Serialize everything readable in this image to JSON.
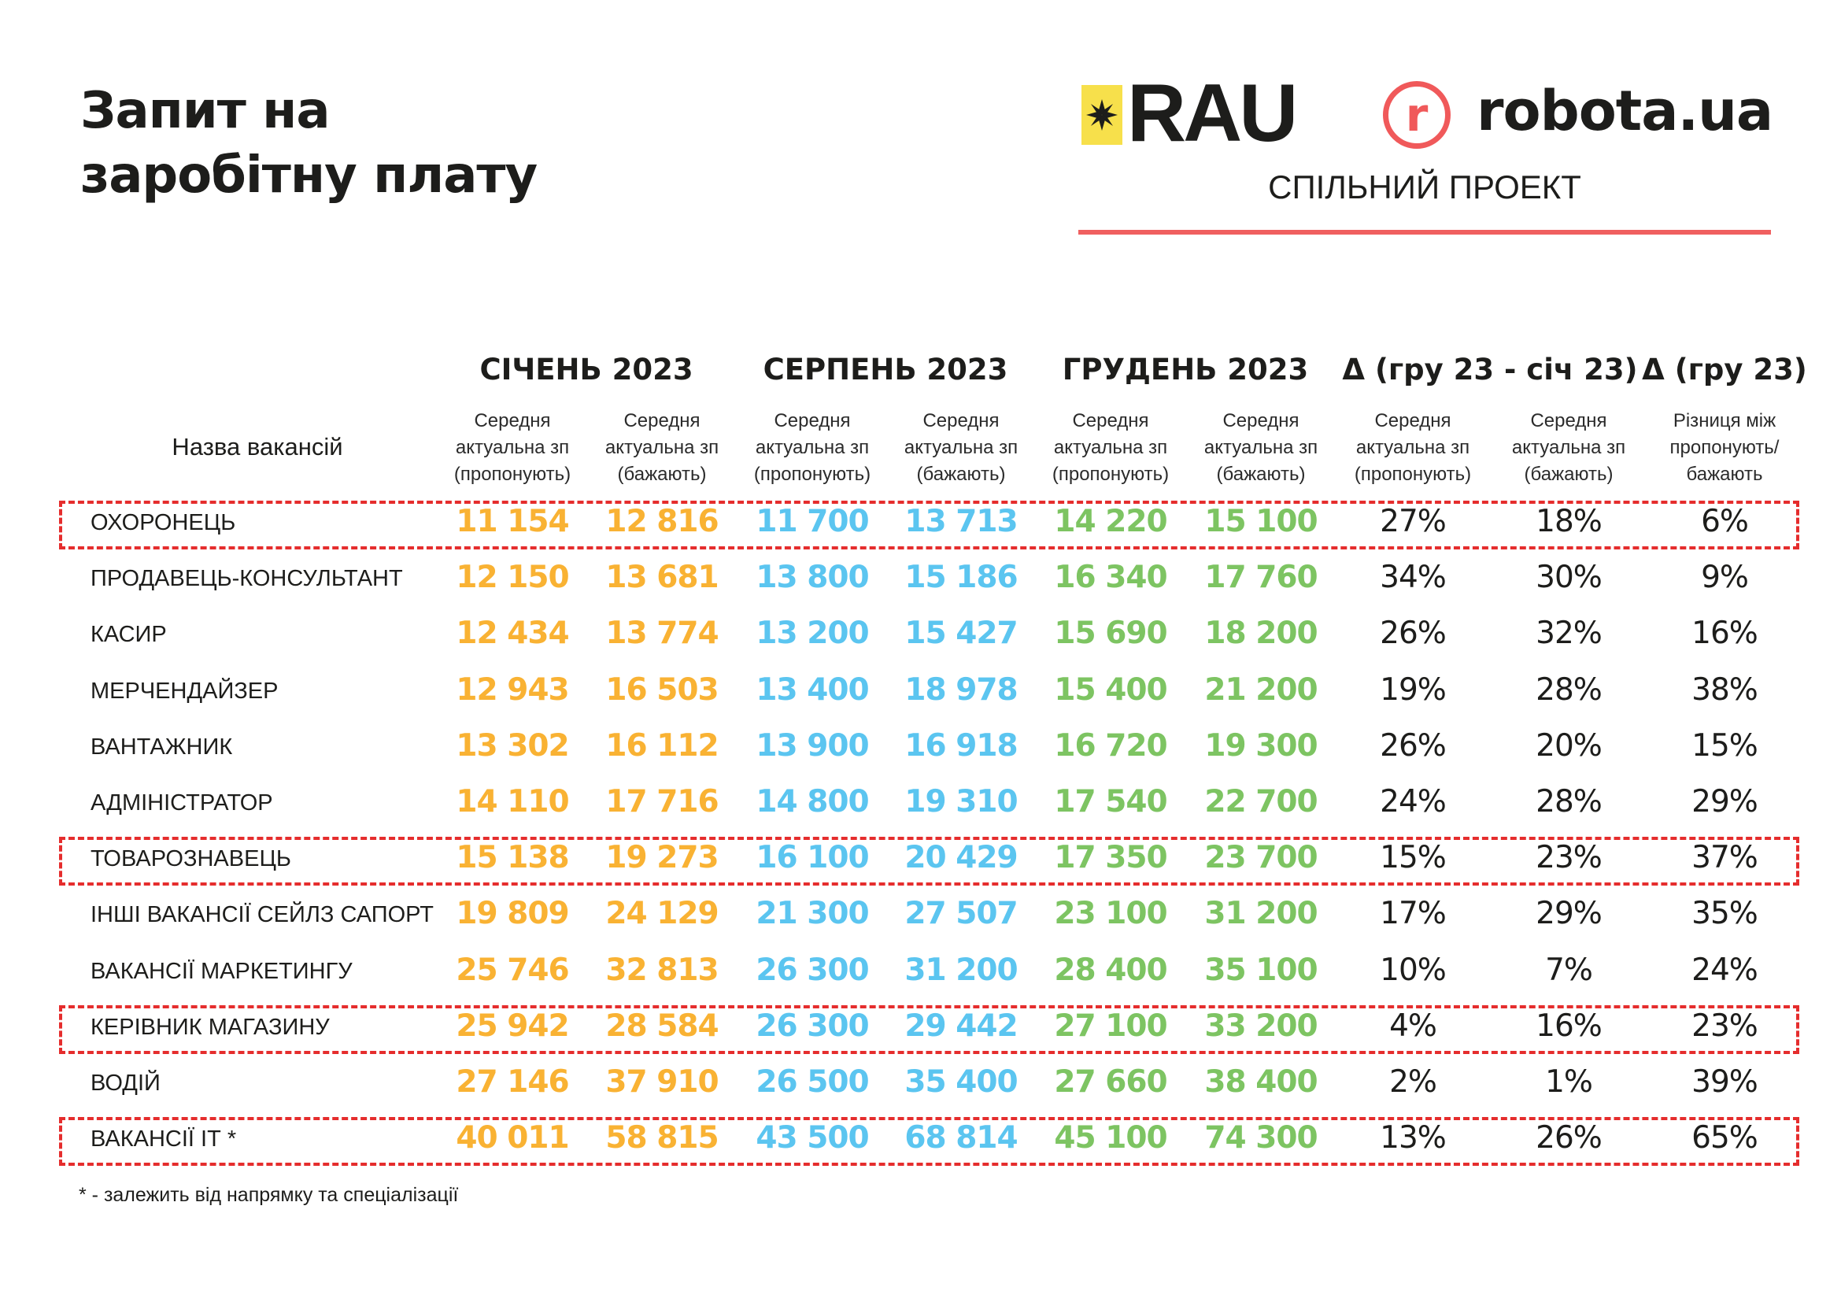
{
  "title_lines": [
    "Запит на",
    "заробітну плату"
  ],
  "logos": {
    "rau": "RAU",
    "robota_mark": "r",
    "robota": "robota.ua",
    "joint_project": "СПІЛЬНИЙ ПРОЕКТ"
  },
  "colors": {
    "orange": "#f9b233",
    "blue": "#5bc5f0",
    "green": "#7dc462",
    "highlight": "#e52d2d",
    "accent_line": "#f06060",
    "rau_yellow": "#f7e04b"
  },
  "table": {
    "name_header": "Назва вакансій",
    "group_headers": [
      "СІЧЕНЬ 2023",
      "СЕРПЕНЬ 2023",
      "ГРУДЕНЬ 2023",
      "Δ (гру 23 - січ 23)",
      "Δ (гру 23)"
    ],
    "sub_headers": [
      [
        "Середня",
        "актуальна зп",
        "(пропонують)"
      ],
      [
        "Середня",
        "актуальна зп",
        "(бажають)"
      ],
      [
        "Середня",
        "актуальна зп",
        "(пропонують)"
      ],
      [
        "Середня",
        "актуальна зп",
        "(бажають)"
      ],
      [
        "Середня",
        "актуальна зп",
        "(пропонують)"
      ],
      [
        "Середня",
        "актуальна зп",
        "(бажають)"
      ],
      [
        "Середня",
        "актуальна зп",
        "(пропонують)"
      ],
      [
        "Середня",
        "актуальна зп",
        "(бажають)"
      ],
      [
        "Різниця між",
        "пропонують/",
        "бажають"
      ]
    ],
    "rows": [
      {
        "name": "ОХОРОНЕЦЬ",
        "highlighted": true,
        "values": [
          "11 154",
          "12 816",
          "11 700",
          "13 713",
          "14 220",
          "15 100",
          "27%",
          "18%",
          "6%"
        ]
      },
      {
        "name": "ПРОДАВЕЦЬ-КОНСУЛЬТАНТ",
        "highlighted": false,
        "values": [
          "12 150",
          "13 681",
          "13 800",
          "15 186",
          "16 340",
          "17 760",
          "34%",
          "30%",
          "9%"
        ]
      },
      {
        "name": "КАСИР",
        "highlighted": false,
        "values": [
          "12 434",
          "13 774",
          "13 200",
          "15 427",
          "15 690",
          "18 200",
          "26%",
          "32%",
          "16%"
        ]
      },
      {
        "name": "МЕРЧЕНДАЙЗЕР",
        "highlighted": false,
        "values": [
          "12 943",
          "16 503",
          "13 400",
          "18 978",
          "15 400",
          "21 200",
          "19%",
          "28%",
          "38%"
        ]
      },
      {
        "name": "ВАНТАЖНИК",
        "highlighted": false,
        "values": [
          "13 302",
          "16 112",
          "13 900",
          "16 918",
          "16 720",
          "19 300",
          "26%",
          "20%",
          "15%"
        ]
      },
      {
        "name": "АДМІНІСТРАТОР",
        "highlighted": false,
        "values": [
          "14 110",
          "17 716",
          "14 800",
          "19 310",
          "17 540",
          "22 700",
          "24%",
          "28%",
          "29%"
        ]
      },
      {
        "name": "ТОВАРОЗНАВЕЦЬ",
        "highlighted": true,
        "values": [
          "15 138",
          "19 273",
          "16 100",
          "20 429",
          "17 350",
          "23 700",
          "15%",
          "23%",
          "37%"
        ]
      },
      {
        "name": "ІНШІ ВАКАНСІЇ СЕЙЛЗ САПОРТ",
        "highlighted": false,
        "values": [
          "19 809",
          "24 129",
          "21 300",
          "27 507",
          "23 100",
          "31 200",
          "17%",
          "29%",
          "35%"
        ]
      },
      {
        "name": "ВАКАНСІЇ МАРКЕТИНГУ",
        "highlighted": false,
        "values": [
          "25 746",
          "32 813",
          "26 300",
          "31 200",
          "28 400",
          "35 100",
          "10%",
          "7%",
          "24%"
        ]
      },
      {
        "name": "КЕРІВНИК МАГАЗИНУ",
        "highlighted": true,
        "values": [
          "25 942",
          "28 584",
          "26 300",
          "29 442",
          "27 100",
          "33 200",
          "4%",
          "16%",
          "23%"
        ]
      },
      {
        "name": "ВОДІЙ",
        "highlighted": false,
        "values": [
          "27 146",
          "37 910",
          "26 500",
          "35 400",
          "27 660",
          "38 400",
          "2%",
          "1%",
          "39%"
        ]
      },
      {
        "name": "ВАКАНСІЇ ІТ *",
        "highlighted": true,
        "values": [
          "40 011",
          "58 815",
          "43 500",
          "68 814",
          "45 100",
          "74 300",
          "13%",
          "26%",
          "65%"
        ]
      }
    ]
  },
  "footnote": "* - залежить від напрямку та спеціалізації"
}
